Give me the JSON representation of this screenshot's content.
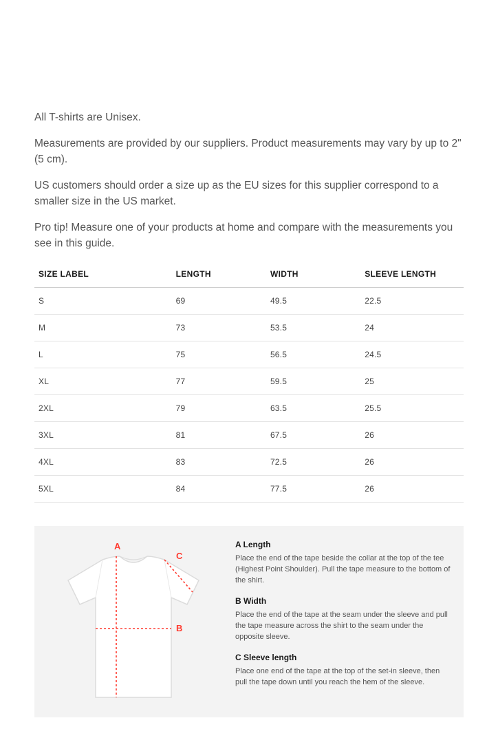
{
  "intro": {
    "p1": "All T-shirts are Unisex.",
    "p2": "Measurements are provided by our suppliers. Product measurements may vary by up to 2\" (5 cm).",
    "p3": "US customers should order a size up as the EU sizes for this supplier correspond to a smaller size in the US market.",
    "p4": "Pro tip! Measure one of your products at home and compare with the measurements you see in this guide."
  },
  "table": {
    "columns": [
      "SIZE LABEL",
      "LENGTH",
      "WIDTH",
      "SLEEVE LENGTH"
    ],
    "rows": [
      [
        "S",
        "69",
        "49.5",
        "22.5"
      ],
      [
        "M",
        "73",
        "53.5",
        "24"
      ],
      [
        "L",
        "75",
        "56.5",
        "24.5"
      ],
      [
        "XL",
        "77",
        "59.5",
        "25"
      ],
      [
        "2XL",
        "79",
        "63.5",
        "25.5"
      ],
      [
        "3XL",
        "81",
        "67.5",
        "26"
      ],
      [
        "4XL",
        "83",
        "72.5",
        "26"
      ],
      [
        "5XL",
        "84",
        "77.5",
        "26"
      ]
    ],
    "header_color": "#1a1a1a",
    "row_color": "#444444",
    "border_color": "#e2e2e2",
    "header_border_color": "#cccccc"
  },
  "guide": {
    "labels": {
      "a": "A",
      "b": "B",
      "c": "C"
    },
    "accent_color": "#ff3b30",
    "shirt_fill": "#ffffff",
    "shirt_stroke": "#e0e0e0",
    "bg": "#f3f3f3",
    "items": [
      {
        "title": "A Length",
        "desc": "Place the end of the tape beside the collar at the top of the tee (Highest Point Shoulder). Pull the tape measure to the bottom of the shirt."
      },
      {
        "title": "B Width",
        "desc": "Place the end of the tape at the seam under the sleeve and pull the tape measure across the shirt to the seam under the opposite sleeve."
      },
      {
        "title": "C Sleeve length",
        "desc": "Place one end of the tape at the top of the set-in sleeve, then pull the tape down until you reach the hem of the sleeve."
      }
    ]
  }
}
